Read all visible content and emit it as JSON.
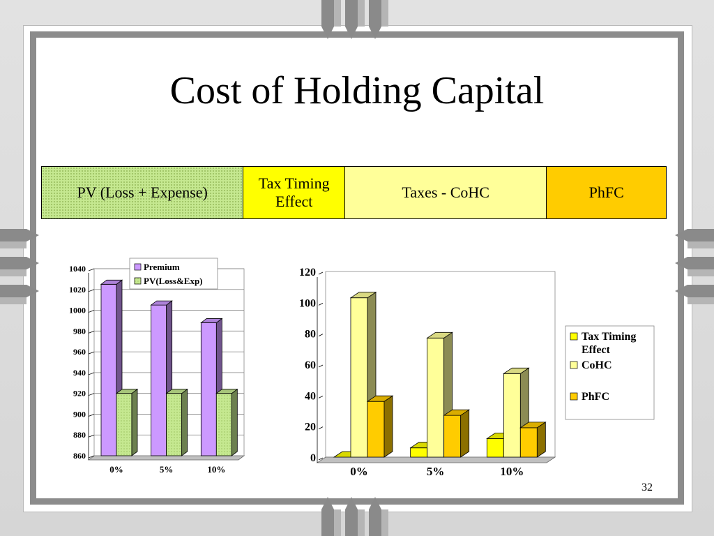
{
  "slide": {
    "title": "Cost of Holding Capital",
    "page_number": "32"
  },
  "strip": {
    "pv_label": "PV (Loss + Expense)",
    "tax_label": "Tax Timing Effect",
    "cohc_label": "Taxes - CoHC",
    "phfc_label": "PhFC"
  },
  "colors": {
    "premium": "#cc99ff",
    "pv_loss_exp": "#c5e890",
    "tax_timing": "#ffff00",
    "cohc": "#ffff99",
    "phfc": "#ffcc00"
  },
  "chart_data": [
    {
      "type": "bar",
      "categories": [
        "0%",
        "5%",
        "10%"
      ],
      "series": [
        {
          "name": "Premium",
          "values": [
            1025,
            1005,
            988
          ]
        },
        {
          "name": "PV(Loss&Exp)",
          "values": [
            920,
            920,
            920
          ]
        }
      ],
      "ylim": [
        860,
        1040
      ],
      "yticks": [
        860,
        880,
        900,
        920,
        940,
        960,
        980,
        1000,
        1020,
        1040
      ],
      "grid": true,
      "legend": "top"
    },
    {
      "type": "bar",
      "categories": [
        "0%",
        "5%",
        "10%"
      ],
      "series": [
        {
          "name": "Tax Timing Effect",
          "values": [
            0,
            6,
            12
          ]
        },
        {
          "name": "CoHC",
          "values": [
            103,
            77,
            54
          ]
        },
        {
          "name": "PhFC",
          "values": [
            36,
            27,
            19
          ]
        }
      ],
      "ylim": [
        0,
        120
      ],
      "yticks": [
        0,
        20,
        40,
        60,
        80,
        100,
        120
      ],
      "grid": false,
      "legend": "right"
    }
  ]
}
